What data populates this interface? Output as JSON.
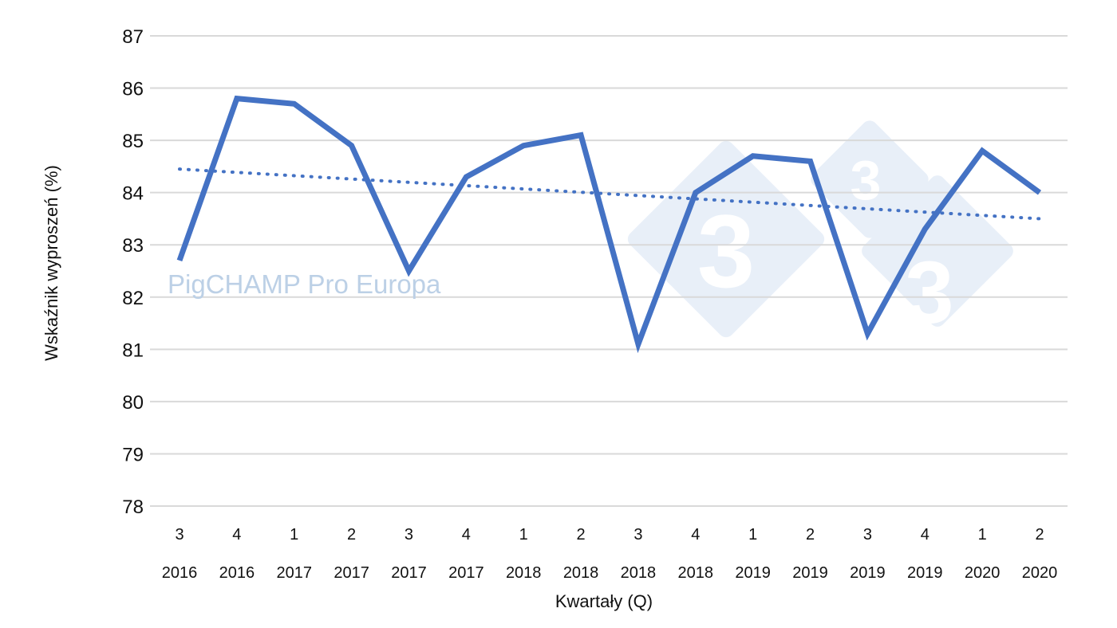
{
  "chart_data": {
    "type": "line",
    "title": "",
    "xlabel": "Kwartały (Q)",
    "ylabel": "Wskaźnik wyproszeń (%)",
    "ylim": [
      78,
      87
    ],
    "yticks": [
      "78",
      "79",
      "80",
      "81",
      "82",
      "83",
      "84",
      "85",
      "86",
      "87"
    ],
    "grid": true,
    "categories": [
      {
        "quarter": "3",
        "year": "2016"
      },
      {
        "quarter": "4",
        "year": "2016"
      },
      {
        "quarter": "1",
        "year": "2017"
      },
      {
        "quarter": "2",
        "year": "2017"
      },
      {
        "quarter": "3",
        "year": "2017"
      },
      {
        "quarter": "4",
        "year": "2017"
      },
      {
        "quarter": "1",
        "year": "2018"
      },
      {
        "quarter": "2",
        "year": "2018"
      },
      {
        "quarter": "3",
        "year": "2018"
      },
      {
        "quarter": "4",
        "year": "2018"
      },
      {
        "quarter": "1",
        "year": "2019"
      },
      {
        "quarter": "2",
        "year": "2019"
      },
      {
        "quarter": "3",
        "year": "2019"
      },
      {
        "quarter": "4",
        "year": "2019"
      },
      {
        "quarter": "1",
        "year": "2020"
      },
      {
        "quarter": "2",
        "year": "2020"
      }
    ],
    "series": [
      {
        "name": "Wskaźnik wyproszeń",
        "values": [
          82.7,
          85.8,
          85.7,
          84.9,
          82.5,
          84.3,
          84.9,
          85.1,
          81.1,
          84.0,
          84.7,
          84.6,
          81.3,
          83.3,
          84.8,
          84.0
        ],
        "color": "#4472c4"
      }
    ],
    "trendline": {
      "type": "linear",
      "start": 84.45,
      "end": 83.5,
      "color": "#4472c4",
      "style": "dotted"
    }
  },
  "watermark": {
    "text": "PigCHAMP Pro Europa",
    "logo_digit": "3",
    "logo_color": "#e8eff8"
  }
}
